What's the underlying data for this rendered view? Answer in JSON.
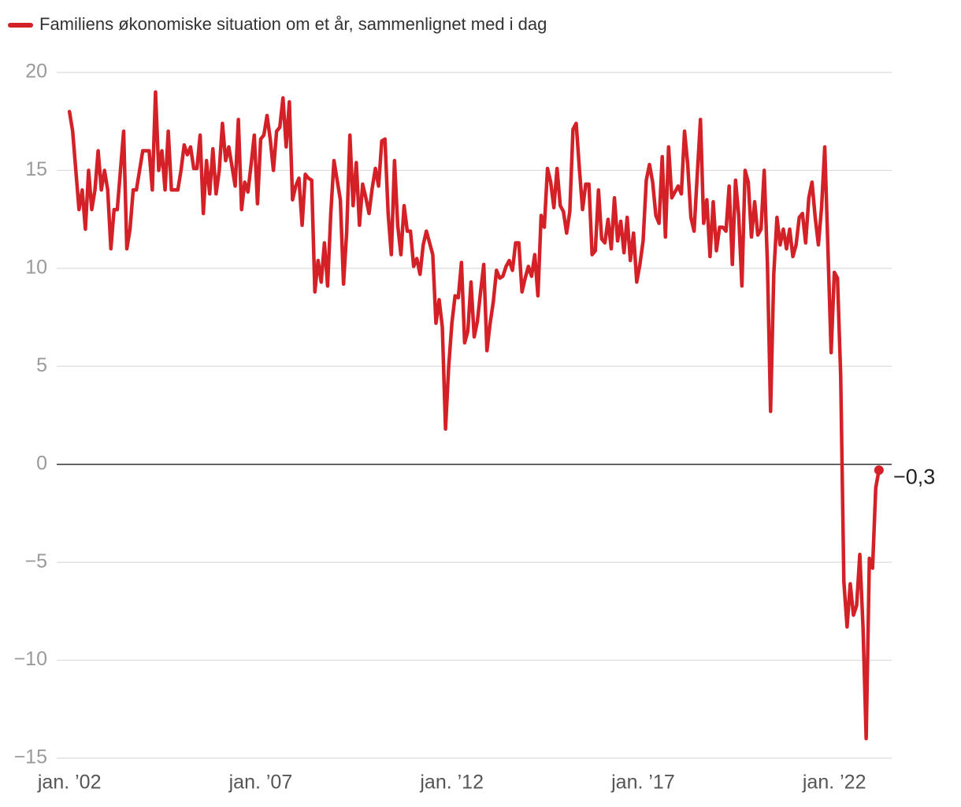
{
  "chart_data": {
    "type": "line",
    "x": [
      "2002-01",
      "2002-02",
      "2002-03",
      "2002-04",
      "2002-05",
      "2002-06",
      "2002-07",
      "2002-08",
      "2002-09",
      "2002-10",
      "2002-11",
      "2002-12",
      "2003-01",
      "2003-02",
      "2003-03",
      "2003-04",
      "2003-05",
      "2003-06",
      "2003-07",
      "2003-08",
      "2003-09",
      "2003-10",
      "2003-11",
      "2003-12",
      "2004-01",
      "2004-02",
      "2004-03",
      "2004-04",
      "2004-05",
      "2004-06",
      "2004-07",
      "2004-08",
      "2004-09",
      "2004-10",
      "2004-11",
      "2004-12",
      "2005-01",
      "2005-02",
      "2005-03",
      "2005-04",
      "2005-05",
      "2005-06",
      "2005-07",
      "2005-08",
      "2005-09",
      "2005-10",
      "2005-11",
      "2005-12",
      "2006-01",
      "2006-02",
      "2006-03",
      "2006-04",
      "2006-05",
      "2006-06",
      "2006-07",
      "2006-08",
      "2006-09",
      "2006-10",
      "2006-11",
      "2006-12",
      "2007-01",
      "2007-02",
      "2007-03",
      "2007-04",
      "2007-05",
      "2007-06",
      "2007-07",
      "2007-08",
      "2007-09",
      "2007-10",
      "2007-11",
      "2007-12",
      "2008-01",
      "2008-02",
      "2008-03",
      "2008-04",
      "2008-05",
      "2008-06",
      "2008-07",
      "2008-08",
      "2008-09",
      "2008-10",
      "2008-11",
      "2008-12",
      "2009-01",
      "2009-02",
      "2009-03",
      "2009-04",
      "2009-05",
      "2009-06",
      "2009-07",
      "2009-08",
      "2009-09",
      "2009-10",
      "2009-11",
      "2009-12",
      "2010-01",
      "2010-02",
      "2010-03",
      "2010-04",
      "2010-05",
      "2010-06",
      "2010-07",
      "2010-08",
      "2010-09",
      "2010-10",
      "2010-11",
      "2010-12",
      "2011-01",
      "2011-02",
      "2011-03",
      "2011-04",
      "2011-05",
      "2011-06",
      "2011-07",
      "2011-08",
      "2011-09",
      "2011-10",
      "2011-11",
      "2011-12",
      "2012-01",
      "2012-02",
      "2012-03",
      "2012-04",
      "2012-05",
      "2012-06",
      "2012-07",
      "2012-08",
      "2012-09",
      "2012-10",
      "2012-11",
      "2012-12",
      "2013-01",
      "2013-02",
      "2013-03",
      "2013-04",
      "2013-05",
      "2013-06",
      "2013-07",
      "2013-08",
      "2013-09",
      "2013-10",
      "2013-11",
      "2013-12",
      "2014-01",
      "2014-02",
      "2014-03",
      "2014-04",
      "2014-05",
      "2014-06",
      "2014-07",
      "2014-08",
      "2014-09",
      "2014-10",
      "2014-11",
      "2014-12",
      "2015-01",
      "2015-02",
      "2015-03",
      "2015-04",
      "2015-05",
      "2015-06",
      "2015-07",
      "2015-08",
      "2015-09",
      "2015-10",
      "2015-11",
      "2015-12",
      "2016-01",
      "2016-02",
      "2016-03",
      "2016-04",
      "2016-05",
      "2016-06",
      "2016-07",
      "2016-08",
      "2016-09",
      "2016-10",
      "2016-11",
      "2016-12",
      "2017-01",
      "2017-02",
      "2017-03",
      "2017-04",
      "2017-05",
      "2017-06",
      "2017-07",
      "2017-08",
      "2017-09",
      "2017-10",
      "2017-11",
      "2017-12",
      "2018-01",
      "2018-02",
      "2018-03",
      "2018-04",
      "2018-05",
      "2018-06",
      "2018-07",
      "2018-08",
      "2018-09",
      "2018-10",
      "2018-11",
      "2018-12",
      "2019-01",
      "2019-02",
      "2019-03",
      "2019-04",
      "2019-05",
      "2019-06",
      "2019-07",
      "2019-08",
      "2019-09",
      "2019-10",
      "2019-11",
      "2019-12",
      "2020-01",
      "2020-02",
      "2020-03",
      "2020-04",
      "2020-05",
      "2020-06",
      "2020-07",
      "2020-08",
      "2020-09",
      "2020-10",
      "2020-11",
      "2020-12",
      "2021-01",
      "2021-02",
      "2021-03",
      "2021-04",
      "2021-05",
      "2021-06",
      "2021-07",
      "2021-08",
      "2021-09",
      "2021-10",
      "2021-11",
      "2021-12",
      "2022-01",
      "2022-02",
      "2022-03",
      "2022-04",
      "2022-05",
      "2022-06",
      "2022-07",
      "2022-08",
      "2022-09",
      "2022-10",
      "2022-11",
      "2022-12",
      "2023-01",
      "2023-02",
      "2023-03"
    ],
    "series": [
      {
        "name": "Familiens økonomiske situation om et år, sammenlignet med i dag",
        "color": "#d42027",
        "values": [
          18,
          17,
          15,
          13,
          14,
          12,
          15,
          13,
          14,
          16,
          14,
          15,
          14,
          11,
          13,
          13,
          15,
          17,
          11,
          12,
          14,
          14,
          15,
          16,
          16,
          16,
          14,
          19,
          15,
          16,
          14,
          17,
          14,
          14,
          14,
          15,
          16.3,
          15.8,
          16.2,
          15.1,
          15.1,
          16.8,
          12.8,
          15.5,
          13.8,
          16.1,
          13.8,
          15,
          17.4,
          15.5,
          16.2,
          15.2,
          14.2,
          17.6,
          13,
          14.4,
          13.9,
          15.3,
          16.8,
          13.3,
          16.6,
          16.8,
          17.8,
          16.6,
          15,
          17,
          17.2,
          18.7,
          16.2,
          18.5,
          13.5,
          14.2,
          14.6,
          12.2,
          14.8,
          14.6,
          14.5,
          8.8,
          10.4,
          9.3,
          11.3,
          9.1,
          12.8,
          15.5,
          14.5,
          13.5,
          9.2,
          11.9,
          16.8,
          13.2,
          15.4,
          12.2,
          14.3,
          13.6,
          12.8,
          14.1,
          15.1,
          14.2,
          16.5,
          16.6,
          12.8,
          10.7,
          15.5,
          12.2,
          10.7,
          13.2,
          11.9,
          11.9,
          10.1,
          10.5,
          9.7,
          11.2,
          11.9,
          11.3,
          10.7,
          7.2,
          8.4,
          7,
          1.8,
          5,
          7.2,
          8.6,
          8.5,
          10.3,
          6.2,
          6.8,
          9.3,
          6.5,
          7.3,
          8.8,
          10.2,
          5.8,
          7.2,
          8.3,
          9.9,
          9.5,
          9.6,
          10.1,
          10.4,
          9.9,
          11.3,
          11.3,
          8.8,
          9.5,
          10.1,
          9.6,
          10.7,
          8.6,
          12.7,
          12.1,
          15.1,
          14.4,
          13.1,
          15.1,
          13.2,
          12.9,
          11.8,
          12.9,
          17.1,
          17.4,
          15.1,
          13,
          14.3,
          14.3,
          10.7,
          10.9,
          14,
          11.5,
          11.3,
          12.5,
          11,
          13.6,
          11.4,
          12.4,
          10.8,
          12.6,
          10.4,
          11.8,
          9.3,
          10.2,
          11.4,
          14.5,
          15.3,
          14.4,
          12.7,
          12.3,
          15.7,
          11.6,
          16.2,
          13.6,
          13.9,
          14.2,
          13.8,
          17,
          15.3,
          12.6,
          11.9,
          14.8,
          17.6,
          12.3,
          13.5,
          10.6,
          13.4,
          10.9,
          12.1,
          12.1,
          11.9,
          14.2,
          10.2,
          14.5,
          12.7,
          9.1,
          15,
          14.4,
          11.6,
          13.4,
          11.7,
          12,
          15,
          10.3,
          2.7,
          9.7,
          12.6,
          11.2,
          12,
          11,
          12,
          10.6,
          11.2,
          12.6,
          12.8,
          11.3,
          13.6,
          14.4,
          12.6,
          11.2,
          13.1,
          16.2,
          11,
          5.7,
          9.8,
          9.5,
          4.5,
          -6,
          -8.3,
          -6.1,
          -7.7,
          -7.2,
          -4.6,
          -8.3,
          -14,
          -4.8,
          -5.3,
          -1.2,
          -0.3
        ],
        "value_labels": [
          null,
          null,
          null,
          null,
          null,
          null,
          null,
          null,
          null,
          null,
          null,
          null,
          null,
          null,
          null,
          null,
          null,
          null,
          null,
          null,
          null,
          null,
          null,
          null,
          null,
          null,
          null,
          null,
          null,
          null,
          null,
          null,
          null,
          null,
          null,
          null,
          null,
          null,
          null,
          null,
          null,
          null,
          null,
          null,
          null,
          null,
          null,
          null,
          null,
          null,
          null,
          null,
          null,
          null,
          null,
          null,
          null,
          null,
          null,
          null,
          null,
          null,
          null,
          null,
          null,
          null,
          null,
          null,
          null,
          null,
          null,
          null,
          null,
          null,
          null,
          null,
          null,
          null,
          null,
          null,
          null,
          null,
          null,
          null,
          null,
          null,
          null,
          null,
          null,
          null,
          null,
          null,
          null,
          null,
          null,
          null,
          null,
          null,
          null,
          null,
          null,
          null,
          null,
          null,
          null,
          null,
          null,
          null,
          null,
          null,
          null,
          null,
          null,
          null,
          null,
          null,
          null,
          null,
          null,
          null,
          null,
          null,
          null,
          null,
          null,
          null,
          null,
          null,
          null,
          null,
          null,
          null,
          null,
          null,
          null,
          null,
          null,
          null,
          null,
          null,
          null,
          null,
          null,
          null,
          null,
          null,
          null,
          null,
          null,
          null,
          null,
          null,
          null,
          null,
          null,
          null,
          null,
          null,
          null,
          null,
          null,
          null,
          null,
          null,
          null,
          null,
          null,
          null,
          null,
          null,
          null,
          null,
          null,
          null,
          null,
          null,
          null,
          null,
          null,
          null,
          null,
          null,
          null,
          null,
          null,
          null,
          null,
          null,
          null,
          null,
          null,
          null,
          null,
          null,
          null,
          null,
          null,
          null,
          null,
          null,
          null,
          null,
          null,
          null,
          null,
          null,
          null,
          null,
          null,
          null,
          null,
          null,
          null,
          null,
          null,
          null,
          null,
          null,
          null,
          null,
          null,
          null,
          null,
          null,
          null,
          null,
          null,
          null,
          null,
          null,
          null,
          null,
          null,
          null,
          null,
          null,
          null,
          null,
          null,
          null,
          null,
          null,
          null,
          null,
          null,
          null,
          null,
          null,
          null,
          null,
          null,
          null,
          null,
          null,
          "−0,3"
        ]
      }
    ],
    "xlim": [
      "2001-09",
      "2023-07"
    ],
    "xticks": [
      {
        "value": "2002-01",
        "label": "jan. ’02"
      },
      {
        "value": "2007-01",
        "label": "jan. ’07"
      },
      {
        "value": "2012-01",
        "label": "jan. ’12"
      },
      {
        "value": "2017-01",
        "label": "jan. ’17"
      },
      {
        "value": "2022-01",
        "label": "jan. ’22"
      }
    ],
    "ylim": [
      -15,
      20
    ],
    "yticks": [
      {
        "value": -15,
        "label": "−15"
      },
      {
        "value": -10,
        "label": "−10"
      },
      {
        "value": -5,
        "label": "−5"
      },
      0,
      5,
      10,
      15,
      20
    ],
    "grid": true,
    "legend": "top-left"
  }
}
